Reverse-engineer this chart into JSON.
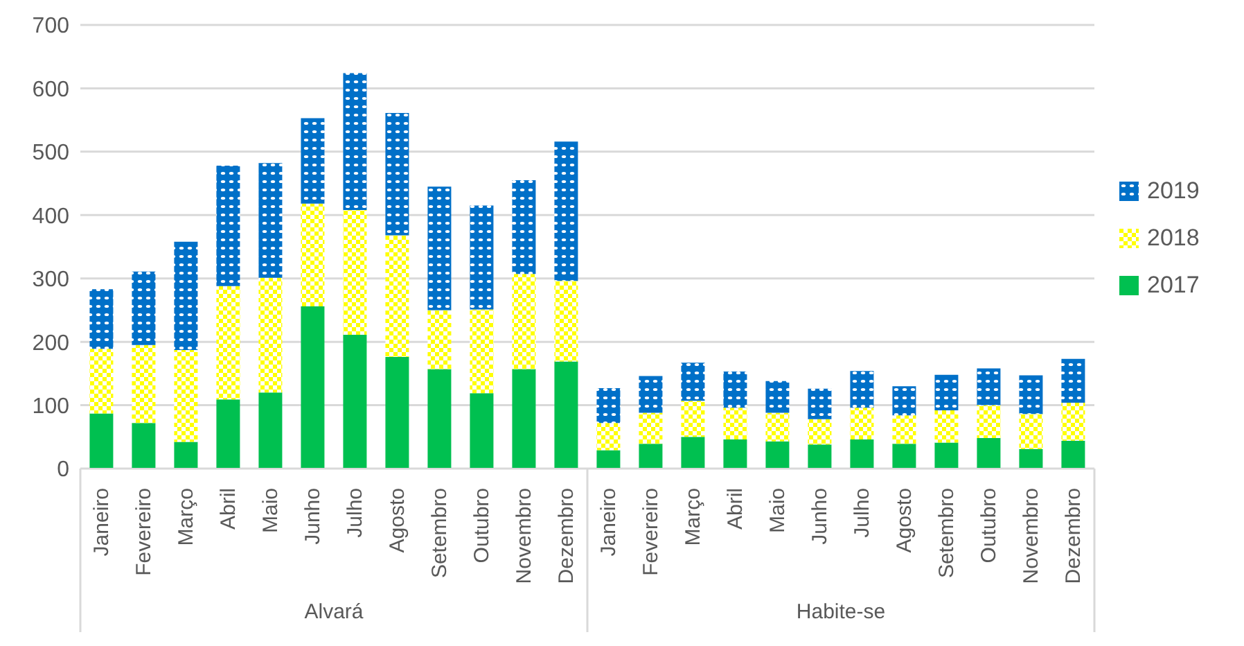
{
  "chart_data": {
    "type": "bar",
    "stacked": true,
    "categories": [
      "Janeiro",
      "Fevereiro",
      "Março",
      "Abril",
      "Maio",
      "Junho",
      "Julho",
      "Agosto",
      "Setembro",
      "Outubro",
      "Novembro",
      "Dezembro",
      "Janeiro",
      "Fevereiro",
      "Março",
      "Abril",
      "Maio",
      "Junho",
      "Julho",
      "Agosto",
      "Setembro",
      "Outubro",
      "Novembro",
      "Dezembro"
    ],
    "series": [
      {
        "name": "2017",
        "color": "#00c050",
        "values": [
          87,
          72,
          42,
          109,
          120,
          256,
          211,
          176,
          157,
          119,
          157,
          169,
          29,
          39,
          50,
          46,
          43,
          38,
          46,
          39,
          41,
          48,
          31,
          44
        ]
      },
      {
        "name": "2018",
        "color": "#ffff00",
        "values": [
          102,
          123,
          145,
          179,
          181,
          162,
          197,
          192,
          93,
          132,
          150,
          127,
          43,
          49,
          57,
          50,
          45,
          40,
          50,
          45,
          51,
          52,
          55,
          60
        ]
      },
      {
        "name": "2019",
        "color": "#0070c8",
        "values": [
          94,
          116,
          171,
          190,
          181,
          135,
          216,
          193,
          195,
          164,
          148,
          220,
          55,
          58,
          60,
          57,
          50,
          48,
          58,
          46,
          56,
          58,
          61,
          69
        ]
      }
    ],
    "annotations": [
      "Alvará",
      "Habite-se"
    ],
    "ylim": [
      0,
      700
    ],
    "yticks": [
      0,
      100,
      200,
      300,
      400,
      500,
      600,
      700
    ],
    "grid": "y",
    "legend": "right"
  }
}
